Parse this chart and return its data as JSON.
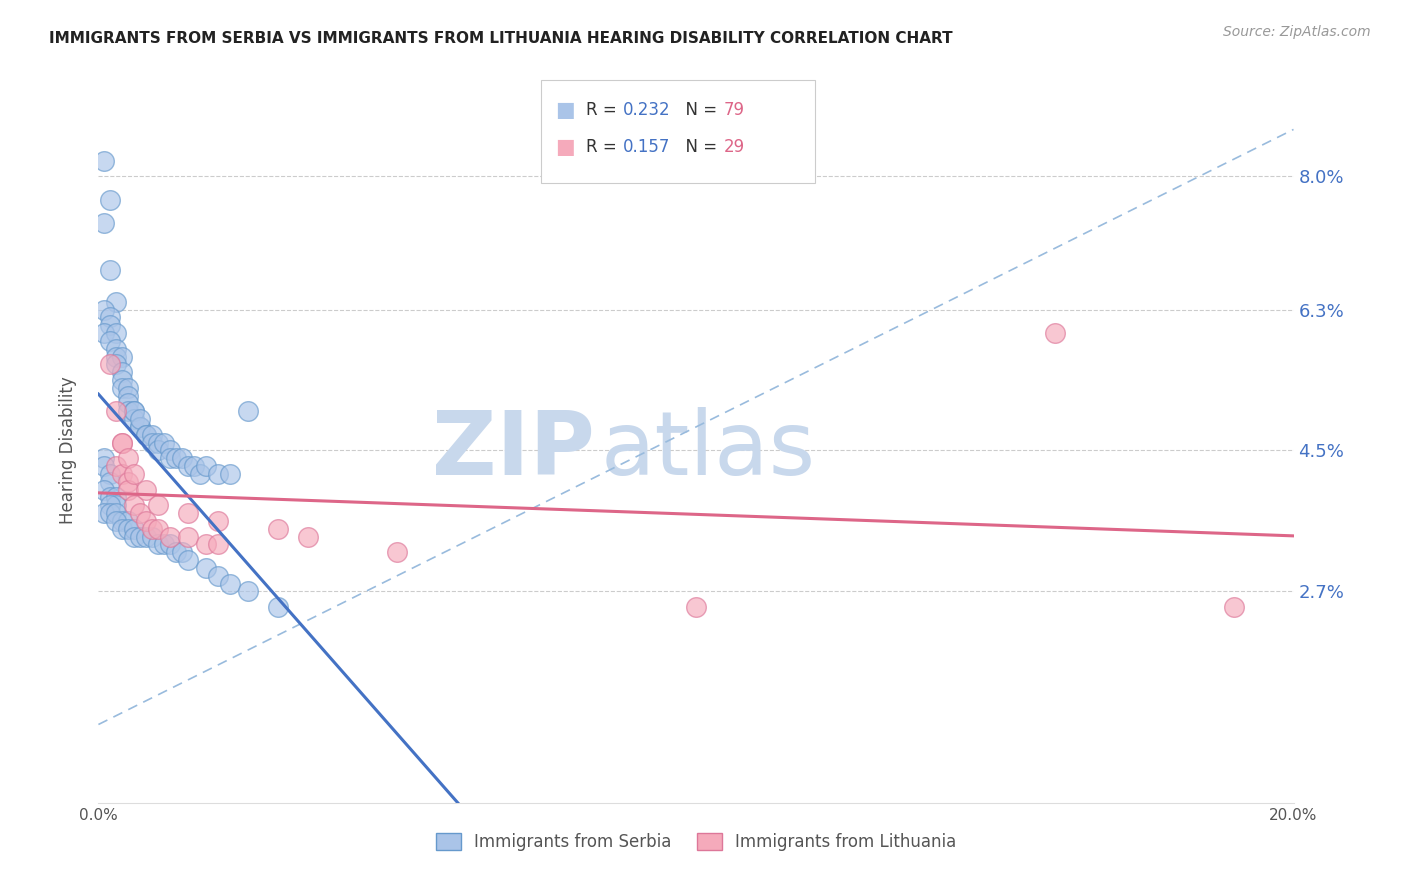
{
  "title": "IMMIGRANTS FROM SERBIA VS IMMIGRANTS FROM LITHUANIA HEARING DISABILITY CORRELATION CHART",
  "source": "Source: ZipAtlas.com",
  "ylabel": "Hearing Disability",
  "xlim": [
    0.0,
    0.2
  ],
  "ylim": [
    0.0,
    0.09
  ],
  "xticks": [
    0.0,
    0.05,
    0.1,
    0.15,
    0.2
  ],
  "xticklabels": [
    "0.0%",
    "",
    "",
    "",
    "20.0%"
  ],
  "ytick_positions": [
    0.027,
    0.045,
    0.063,
    0.08
  ],
  "ytick_labels": [
    "2.7%",
    "4.5%",
    "6.3%",
    "8.0%"
  ],
  "grid_color": "#cccccc",
  "background_color": "#ffffff",
  "serbia_color": "#aac4e8",
  "serbia_edge_color": "#6699cc",
  "lithuania_color": "#f5aabb",
  "lithuania_edge_color": "#dd7799",
  "serbia_R": 0.232,
  "serbia_N": 79,
  "lithuania_R": 0.157,
  "lithuania_N": 29,
  "trend_color_serbia": "#4472c4",
  "trend_color_lithuania": "#dd6688",
  "dashed_line_color": "#99bbdd",
  "watermark_zip": "ZIP",
  "watermark_atlas": "atlas",
  "watermark_color": "#ccddf0",
  "serbia_x": [
    0.001,
    0.002,
    0.001,
    0.002,
    0.003,
    0.001,
    0.002,
    0.002,
    0.001,
    0.003,
    0.002,
    0.003,
    0.003,
    0.004,
    0.003,
    0.004,
    0.004,
    0.004,
    0.005,
    0.005,
    0.005,
    0.005,
    0.006,
    0.006,
    0.006,
    0.007,
    0.007,
    0.007,
    0.008,
    0.008,
    0.009,
    0.009,
    0.01,
    0.01,
    0.011,
    0.012,
    0.012,
    0.013,
    0.014,
    0.015,
    0.016,
    0.017,
    0.018,
    0.02,
    0.022,
    0.025,
    0.001,
    0.001,
    0.002,
    0.002,
    0.001,
    0.002,
    0.003,
    0.003,
    0.002,
    0.001,
    0.002,
    0.003,
    0.004,
    0.005,
    0.003,
    0.004,
    0.005,
    0.006,
    0.006,
    0.007,
    0.008,
    0.009,
    0.01,
    0.011,
    0.012,
    0.013,
    0.014,
    0.015,
    0.018,
    0.02,
    0.022,
    0.025,
    0.03
  ],
  "serbia_y": [
    0.082,
    0.077,
    0.074,
    0.068,
    0.064,
    0.063,
    0.062,
    0.061,
    0.06,
    0.06,
    0.059,
    0.058,
    0.057,
    0.057,
    0.056,
    0.055,
    0.054,
    0.053,
    0.053,
    0.052,
    0.051,
    0.05,
    0.05,
    0.049,
    0.05,
    0.048,
    0.048,
    0.049,
    0.047,
    0.047,
    0.047,
    0.046,
    0.046,
    0.045,
    0.046,
    0.045,
    0.044,
    0.044,
    0.044,
    0.043,
    0.043,
    0.042,
    0.043,
    0.042,
    0.042,
    0.05,
    0.044,
    0.043,
    0.042,
    0.041,
    0.04,
    0.039,
    0.039,
    0.038,
    0.038,
    0.037,
    0.037,
    0.037,
    0.036,
    0.036,
    0.036,
    0.035,
    0.035,
    0.035,
    0.034,
    0.034,
    0.034,
    0.034,
    0.033,
    0.033,
    0.033,
    0.032,
    0.032,
    0.031,
    0.03,
    0.029,
    0.028,
    0.027,
    0.025
  ],
  "lithuania_x": [
    0.002,
    0.003,
    0.004,
    0.003,
    0.004,
    0.005,
    0.005,
    0.006,
    0.007,
    0.008,
    0.009,
    0.01,
    0.012,
    0.015,
    0.018,
    0.02,
    0.004,
    0.005,
    0.006,
    0.008,
    0.01,
    0.015,
    0.02,
    0.03,
    0.035,
    0.19,
    0.16,
    0.1,
    0.05
  ],
  "lithuania_y": [
    0.056,
    0.05,
    0.046,
    0.043,
    0.042,
    0.041,
    0.04,
    0.038,
    0.037,
    0.036,
    0.035,
    0.035,
    0.034,
    0.034,
    0.033,
    0.033,
    0.046,
    0.044,
    0.042,
    0.04,
    0.038,
    0.037,
    0.036,
    0.035,
    0.034,
    0.025,
    0.06,
    0.025,
    0.032
  ]
}
